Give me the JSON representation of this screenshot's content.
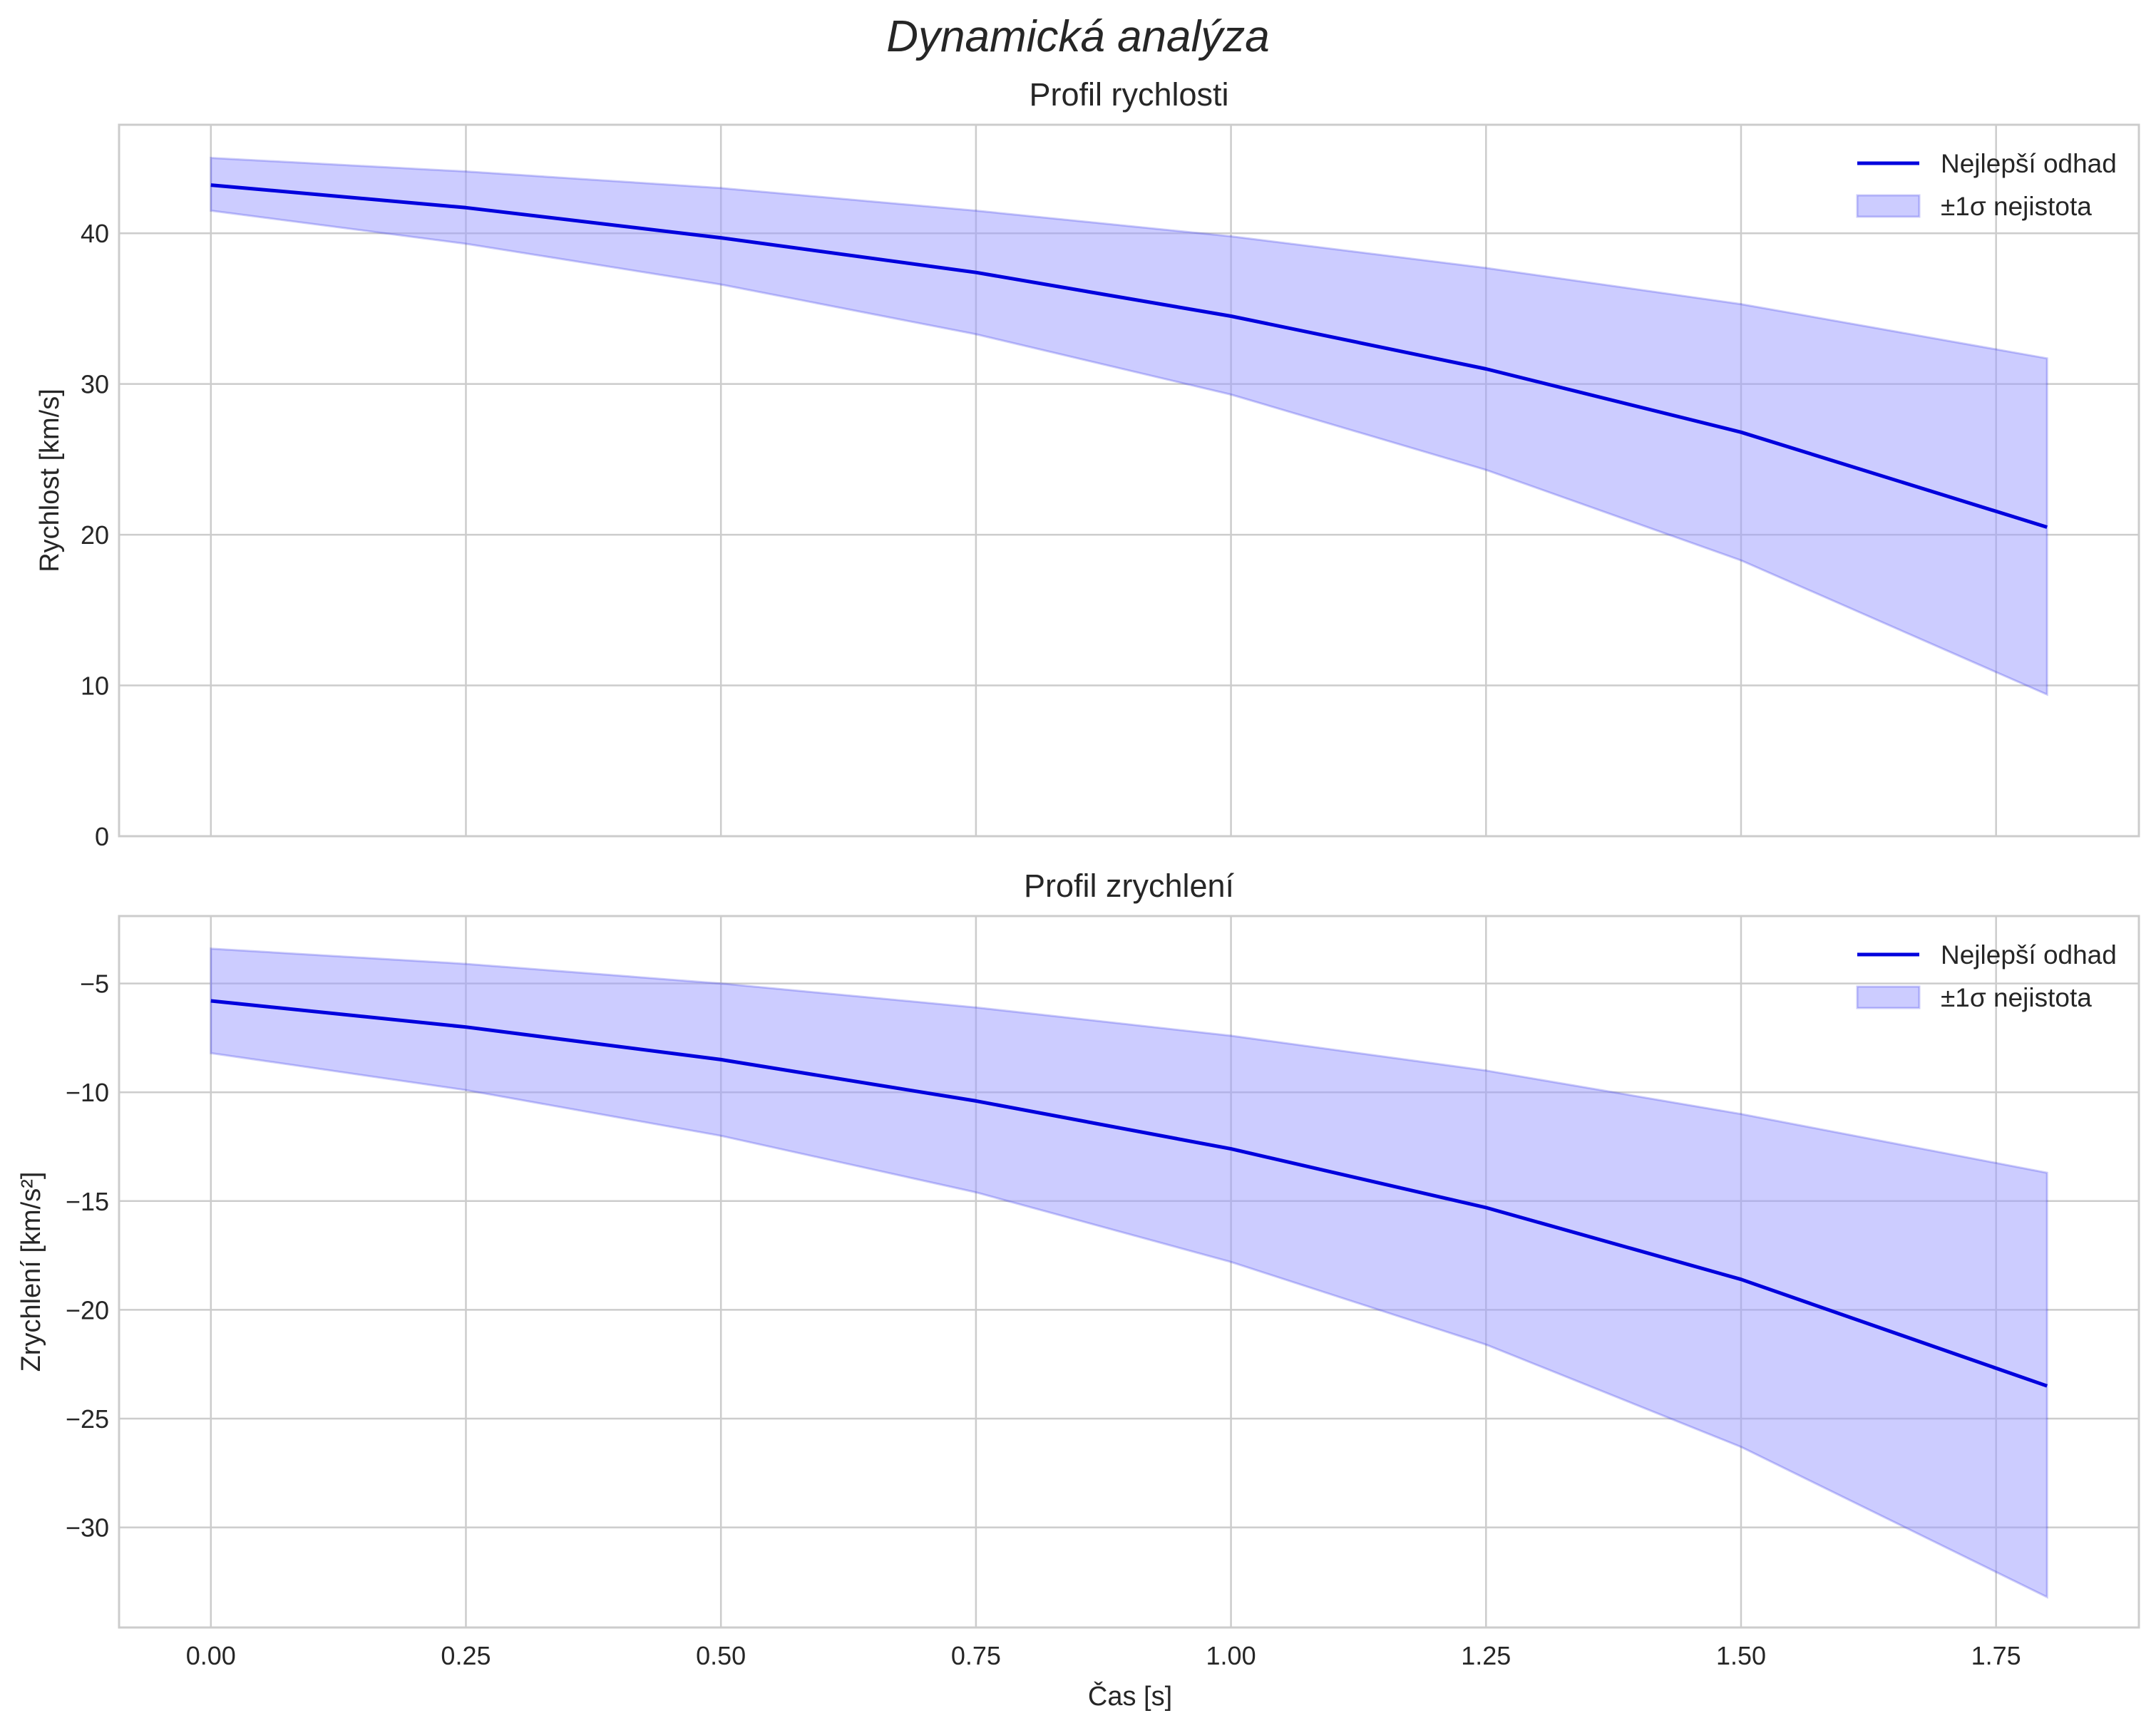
{
  "figure": {
    "title": "Dynamická analýza",
    "xlabel": "Čas [s]"
  },
  "colors": {
    "line": "#0000dd",
    "band": "#9999ff",
    "grid": "#cccccc",
    "frame": "#cccccc"
  },
  "chart_data": [
    {
      "type": "line",
      "title": "Profil rychlosti",
      "xlabel": "",
      "ylabel": "Rychlost [km/s]",
      "xlim": [
        -0.09,
        1.89
      ],
      "ylim": [
        0,
        47.2
      ],
      "xticks": [
        0.0,
        0.25,
        0.5,
        0.75,
        1.0,
        1.25,
        1.5,
        1.75
      ],
      "xtick_labels": [
        "0.00",
        "0.25",
        "0.50",
        "0.75",
        "1.00",
        "1.25",
        "1.50",
        "1.75"
      ],
      "show_xtick_labels": false,
      "yticks": [
        0,
        10,
        20,
        30,
        40
      ],
      "ytick_labels": [
        "0",
        "10",
        "20",
        "30",
        "40"
      ],
      "grid": true,
      "legend_position": "top-right",
      "series": [
        {
          "name": "Nejlepší odhad",
          "kind": "line",
          "x": [
            0.0,
            0.25,
            0.5,
            0.75,
            1.0,
            1.25,
            1.5,
            1.8
          ],
          "y": [
            43.2,
            41.7,
            39.7,
            37.4,
            34.5,
            31.0,
            26.8,
            20.5
          ]
        },
        {
          "name": "±1σ nejistota",
          "kind": "band",
          "x": [
            0.0,
            0.25,
            0.5,
            0.75,
            1.0,
            1.25,
            1.5,
            1.8
          ],
          "lower": [
            41.5,
            39.3,
            36.6,
            33.3,
            29.3,
            24.3,
            18.3,
            9.4
          ],
          "upper": [
            45.0,
            44.1,
            43.0,
            41.5,
            39.8,
            37.7,
            35.3,
            31.7
          ]
        }
      ]
    },
    {
      "type": "line",
      "title": "Profil zrychlení",
      "xlabel": "Čas [s]",
      "ylabel": "Zrychlení [km/s²]",
      "xlim": [
        -0.09,
        1.89
      ],
      "ylim": [
        -34.6,
        -1.9
      ],
      "xticks": [
        0.0,
        0.25,
        0.5,
        0.75,
        1.0,
        1.25,
        1.5,
        1.75
      ],
      "xtick_labels": [
        "0.00",
        "0.25",
        "0.50",
        "0.75",
        "1.00",
        "1.25",
        "1.50",
        "1.75"
      ],
      "show_xtick_labels": true,
      "yticks": [
        -30,
        -25,
        -20,
        -15,
        -10,
        -5
      ],
      "ytick_labels": [
        "−30",
        "−25",
        "−20",
        "−15",
        "−10",
        "−5"
      ],
      "grid": true,
      "legend_position": "top-right",
      "series": [
        {
          "name": "Nejlepší odhad",
          "kind": "line",
          "x": [
            0.0,
            0.25,
            0.5,
            0.75,
            1.0,
            1.25,
            1.5,
            1.8
          ],
          "y": [
            -5.8,
            -7.0,
            -8.5,
            -10.4,
            -12.6,
            -15.3,
            -18.6,
            -23.5
          ]
        },
        {
          "name": "±1σ nejistota",
          "kind": "band",
          "x": [
            0.0,
            0.25,
            0.5,
            0.75,
            1.0,
            1.25,
            1.5,
            1.8
          ],
          "lower": [
            -8.2,
            -9.9,
            -12.0,
            -14.6,
            -17.8,
            -21.6,
            -26.3,
            -33.2
          ],
          "upper": [
            -3.4,
            -4.1,
            -5.0,
            -6.1,
            -7.4,
            -9.0,
            -11.0,
            -13.7
          ]
        }
      ]
    }
  ]
}
